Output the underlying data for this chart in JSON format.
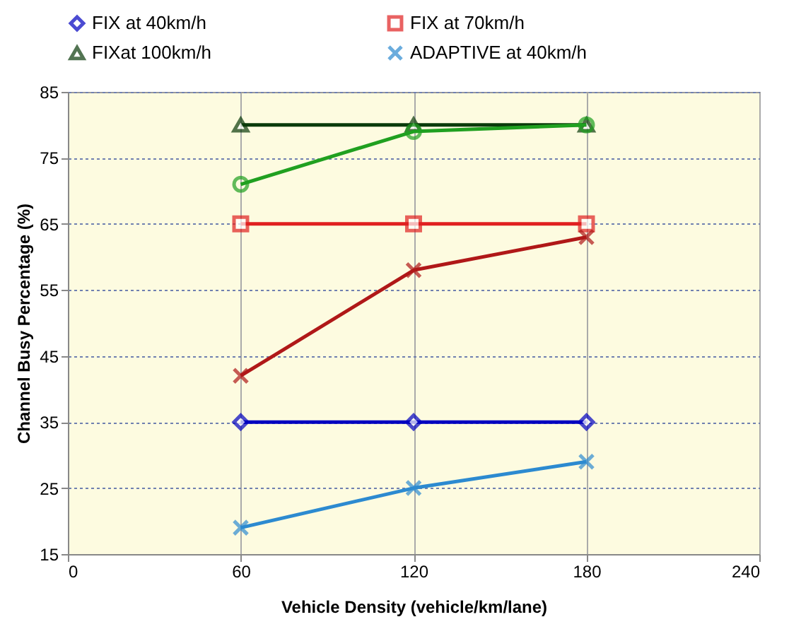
{
  "chart_data": {
    "type": "line",
    "xlabel": "Vehicle Density (vehicle/km/lane)",
    "ylabel": "Channel Busy Percentage (%)",
    "x": [
      60,
      120,
      180
    ],
    "series": [
      {
        "name": "FIX at 40km/h",
        "color": "#0000c0",
        "marker": "diamond",
        "values": [
          35,
          35,
          35
        ]
      },
      {
        "name": "FIX at 70km/h",
        "color": "#e02020",
        "marker": "square",
        "values": [
          65,
          65,
          65
        ]
      },
      {
        "name": "FIXat 100km/h",
        "color": "#0a3a0a",
        "marker": "triangle",
        "values": [
          80,
          80,
          80
        ]
      },
      {
        "name": "ADAPTIVE at 40km/h",
        "color": "#2c8ad0",
        "marker": "cross",
        "values": [
          19,
          25,
          29
        ]
      },
      {
        "color": "#20a020",
        "marker": "circle",
        "values": [
          71,
          79,
          80
        ]
      },
      {
        "color": "#b01818",
        "marker": "cross",
        "values": [
          42,
          58,
          63
        ]
      }
    ],
    "xlim": [
      0,
      240
    ],
    "xticks": [
      0,
      60,
      120,
      180,
      240
    ],
    "ylim": [
      15,
      85
    ],
    "yticks": [
      15,
      25,
      35,
      45,
      55,
      65,
      75,
      85
    ],
    "grid": true,
    "legend": "top"
  }
}
